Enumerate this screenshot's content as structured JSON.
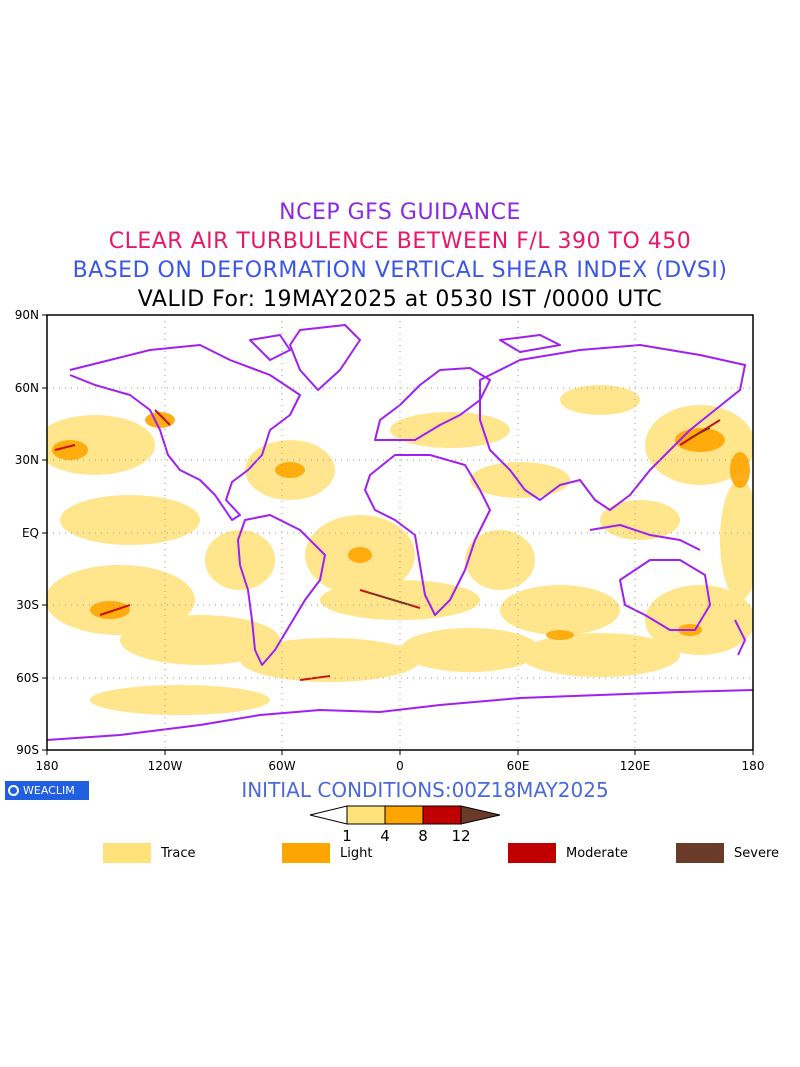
{
  "titles": {
    "line1": "NCEP GFS GUIDANCE",
    "line2": "CLEAR AIR TURBULENCE BETWEEN F/L 390 TO 450",
    "line3": "BASED ON DEFORMATION VERTICAL SHEAR INDEX (DVSI)",
    "line4": "VALID For: 19MAY2025 at 0530 IST /0000 UTC"
  },
  "colors": {
    "line1": "#8a2be2",
    "line2": "#e8176e",
    "line3": "#3b57e6",
    "line4": "#000000",
    "coast": "#a020f0",
    "trace": "#ffe27a",
    "light": "#ffa500",
    "moderate": "#c00000",
    "severe": "#6b3b2a"
  },
  "axes": {
    "lat_labels": [
      "90N",
      "60N",
      "30N",
      "EQ",
      "30S",
      "60S",
      "90S"
    ],
    "lon_labels": [
      "180",
      "120W",
      "60W",
      "0",
      "60E",
      "120E",
      "180"
    ]
  },
  "logo": "WEACLIM",
  "initial_conditions": "INITIAL CONDITIONS:00Z18MAY2025",
  "colorbar": {
    "ticks": [
      "1",
      "4",
      "8",
      "12"
    ]
  },
  "legend": [
    {
      "label": "Trace",
      "color": "#ffe27a"
    },
    {
      "label": "Light",
      "color": "#ffa500"
    },
    {
      "label": "Moderate",
      "color": "#c00000"
    },
    {
      "label": "Severe",
      "color": "#6b3b2a"
    }
  ]
}
